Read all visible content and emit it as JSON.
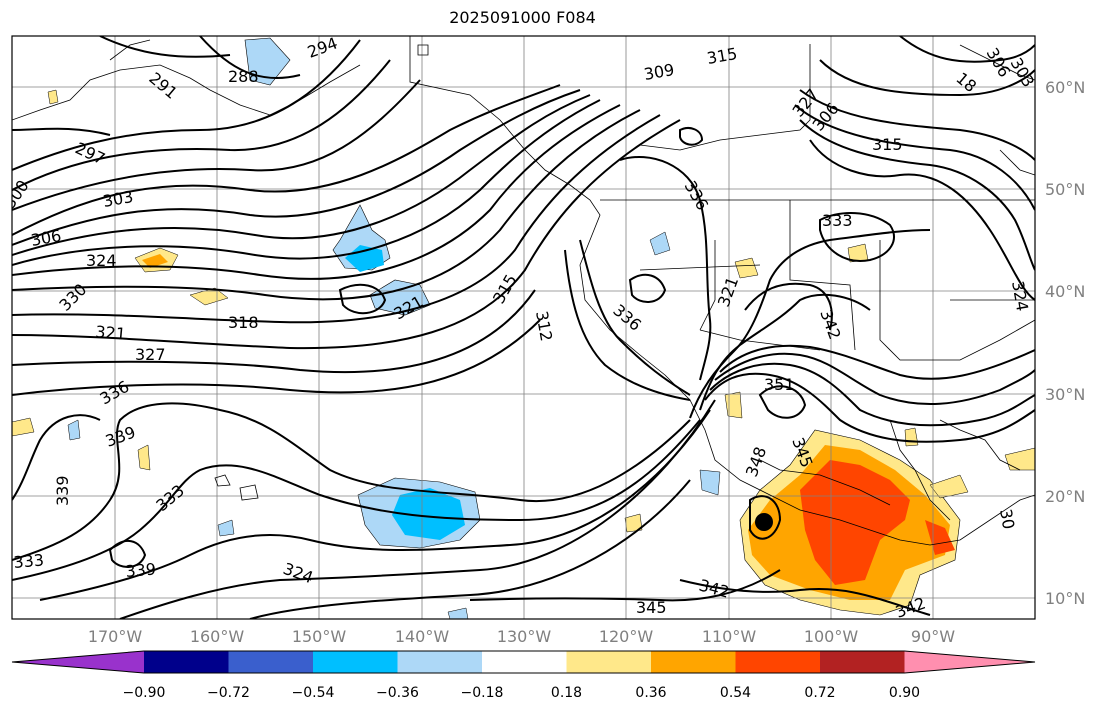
{
  "title": "2025091000 F084",
  "map": {
    "lat_labels": [
      "60°N",
      "50°N",
      "40°N",
      "30°N",
      "20°N",
      "10°N"
    ],
    "lon_labels": [
      "170°W",
      "160°W",
      "150°W",
      "140°W",
      "130°W",
      "120°W",
      "110°W",
      "100°W",
      "90°W"
    ],
    "contour_labels": [
      "288",
      "294",
      "291",
      "297",
      "300",
      "303",
      "306",
      "324",
      "330",
      "321",
      "318",
      "327",
      "336",
      "339",
      "339",
      "333",
      "333",
      "339",
      "324",
      "321",
      "315",
      "312",
      "315",
      "309",
      "306",
      "315",
      "327",
      "336",
      "333",
      "321",
      "336",
      "342",
      "351",
      "348",
      "345",
      "342",
      "345",
      "342",
      "30",
      "303",
      "306",
      "18",
      "324"
    ],
    "colors": {
      "frame": "#000000",
      "grid": "#808080",
      "contour": "#000000",
      "coast": "#000000"
    },
    "city_marker": "filled-dot"
  },
  "colorbar": {
    "labels": [
      "−0.90",
      "−0.72",
      "−0.54",
      "−0.36",
      "−0.18",
      "0.18",
      "0.36",
      "0.54",
      "0.72",
      "0.90"
    ],
    "colors": [
      "#9932cc",
      "#00008b",
      "#3a5fcd",
      "#00bfff",
      "#add8f7",
      "#ffffff",
      "#ffe88a",
      "#ffa500",
      "#ff4500",
      "#b22222",
      "#ff8faf"
    ]
  }
}
